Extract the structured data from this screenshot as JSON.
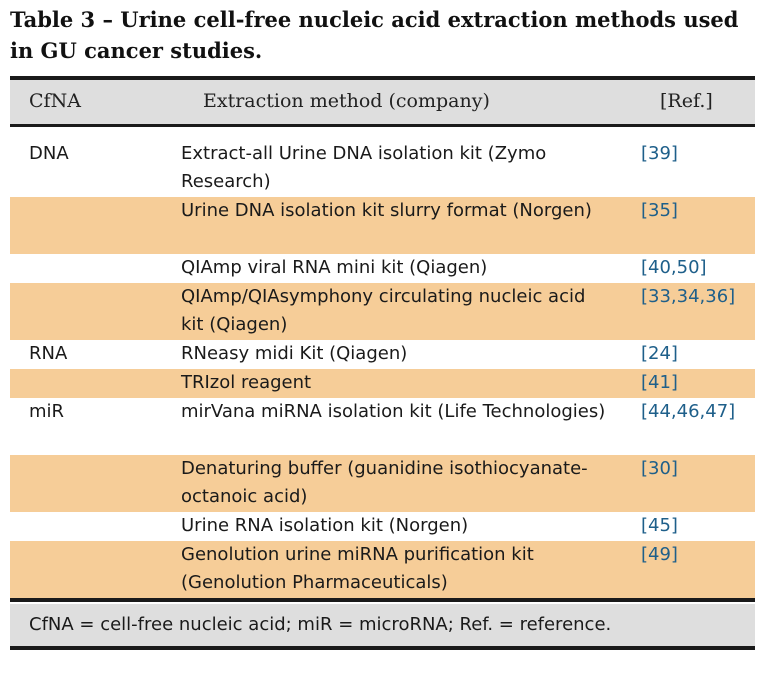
{
  "title": "Table 3 – Urine cell-free nucleic acid extraction methods used in GU cancer studies.",
  "headers": {
    "col1": "CfNA",
    "col2": "Extraction method (company)",
    "col3": "[Ref.]"
  },
  "rows": [
    {
      "cfna": "DNA",
      "method": "Extract-all Urine DNA isolation kit (Zymo Research)",
      "ref": "[39]"
    },
    {
      "cfna": "",
      "method": "Urine DNA isolation kit slurry format (Norgen)",
      "ref": "[35]"
    },
    {
      "cfna": "",
      "method": "QIAmp viral RNA mini kit (Qiagen)",
      "ref": "[40,50]"
    },
    {
      "cfna": "",
      "method": "QIAmp/QIAsymphony circulating nucleic acid kit (Qiagen)",
      "ref": "[33,34,36]"
    },
    {
      "cfna": "RNA",
      "method": "RNeasy midi Kit (Qiagen)",
      "ref": "[24]"
    },
    {
      "cfna": "",
      "method": "TRIzol reagent",
      "ref": "[41]"
    },
    {
      "cfna": "miR",
      "method": "mirVana miRNA isolation kit (Life Technologies)",
      "ref": "[44,46,47]"
    },
    {
      "cfna": "",
      "method": "Denaturing buffer (guanidine isothiocyanate-octanoic acid)",
      "ref": "[30]"
    },
    {
      "cfna": "",
      "method": "Urine RNA isolation kit (Norgen)",
      "ref": "[45]"
    },
    {
      "cfna": "",
      "method": "Genolution urine miRNA purification kit (Genolution Pharmaceuticals)",
      "ref": "[49]"
    }
  ],
  "footnote": "CfNA = cell-free nucleic acid; miR = microRNA; Ref. = reference."
}
